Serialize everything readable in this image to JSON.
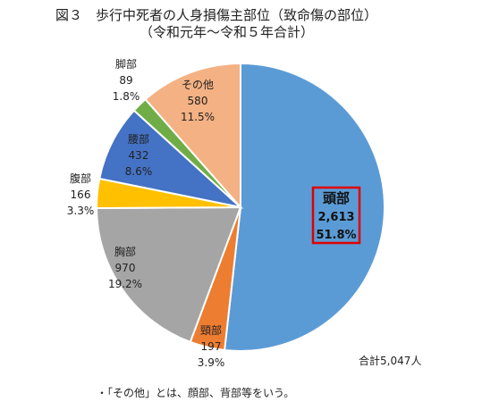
{
  "title": {
    "line1": "図３　歩行中死者の人身損傷主部位（致命傷の部位）",
    "line2": "（令和元年～令和５年合計）"
  },
  "chart_data": {
    "type": "pie",
    "start_angle_deg": 0,
    "direction": "clockwise",
    "slices": [
      {
        "name": "頭部",
        "value": 2613,
        "value_label": "2,613",
        "percent_label": "51.8%",
        "color": "#5b9bd5"
      },
      {
        "name": "頸部",
        "value": 197,
        "value_label": "197",
        "percent_label": "3.9%",
        "color": "#ed7d31"
      },
      {
        "name": "胸部",
        "value": 970,
        "value_label": "970",
        "percent_label": "19.2%",
        "color": "#a5a5a5"
      },
      {
        "name": "腹部",
        "value": 166,
        "value_label": "166",
        "percent_label": "3.3%",
        "color": "#ffc000"
      },
      {
        "name": "腰部",
        "value": 432,
        "value_label": "432",
        "percent_label": "8.6%",
        "color": "#4472c4"
      },
      {
        "name": "脚部",
        "value": 89,
        "value_label": "89",
        "percent_label": "1.8%",
        "color": "#70ad47"
      },
      {
        "name": "その他",
        "value": 580,
        "value_label": "580",
        "percent_label": "11.5%",
        "color": "#f4b183"
      }
    ],
    "highlight": {
      "slice": "頭部",
      "box_color": "#e00000"
    }
  },
  "total_label": "合計5,047人",
  "note": "・「その他」とは、顔部、背部等をいう。"
}
